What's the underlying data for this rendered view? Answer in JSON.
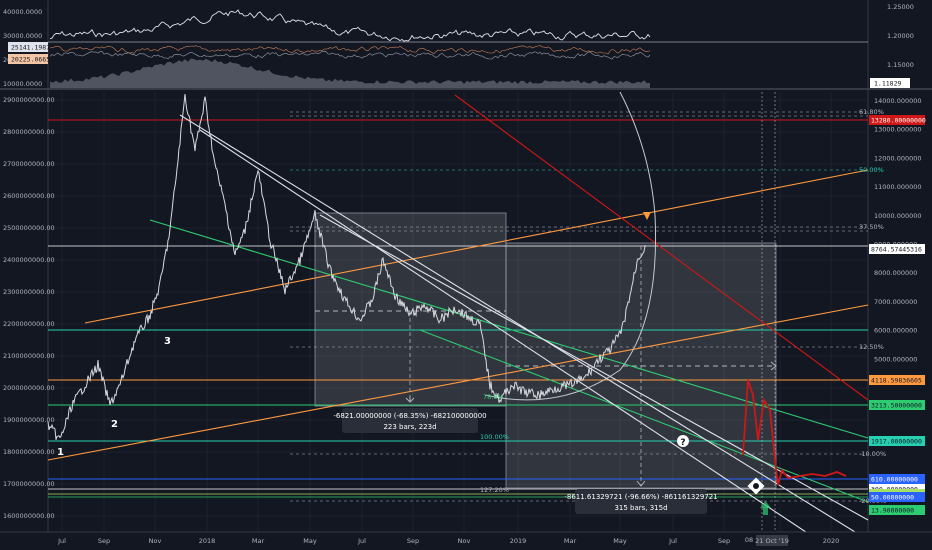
{
  "chart_data": [
    {
      "type": "line",
      "panel": "upper",
      "y_right_ticks": [
        "1.25000",
        "1.20000",
        "1.15000"
      ],
      "y_left_ticks": [
        "40000.0000",
        "30000.0000",
        "20000.0000",
        "10000.0000"
      ],
      "legend_labels": [
        {
          "text": "25141.1987",
          "color": "#e0e3eb",
          "text_color": "#131722"
        },
        {
          "text": "20225.0665",
          "color": "#f5c6a5",
          "text_color": "#131722"
        }
      ],
      "right_price_label": {
        "text": "1.11829",
        "color": "#ffffff",
        "text_color": "#131722"
      },
      "series": [
        {
          "color": "#e0e3eb"
        },
        {
          "color": "#c8805a"
        },
        {
          "color": "#9aa0ad"
        }
      ]
    },
    {
      "type": "line",
      "panel": "main",
      "y_left_ticks": [
        "2900000000.00",
        "2800000000.00",
        "2700000000.00",
        "2600000000.00",
        "2500000000.00",
        "2400000000.00",
        "2300000000.00",
        "2200000000.00",
        "2100000000.00",
        "2000000000.00",
        "1900000000.00",
        "1800000000.00",
        "1700000000.00",
        "1600000000.00"
      ],
      "y_right_ticks": [
        "14000.000000",
        "13000.000000",
        "12000.000000",
        "11000.000000",
        "10000.000000",
        "9000.000000",
        "8000.000000",
        "7000.000000",
        "6000.000000",
        "5000.000000"
      ],
      "x_ticks": [
        "Jul",
        "Sep",
        "Nov",
        "2018",
        "Mar",
        "May",
        "Jul",
        "Sep",
        "Nov",
        "2019",
        "Mar",
        "May",
        "Jul",
        "Sep",
        "Nov",
        "2020"
      ],
      "x_date_label": "08",
      "x_date_highlight": "21 Oct '19",
      "price_labels": [
        {
          "text": "13280.00000000",
          "bg": "#d01717",
          "color": "#ffffff"
        },
        {
          "text": "8764.57445316",
          "bg": "#ffffff",
          "color": "#131722"
        },
        {
          "text": "4118.59836605",
          "bg": "#ff9940",
          "color": "#131722"
        },
        {
          "text": "3213.50000000",
          "bg": "#2ecc71",
          "color": "#131722"
        },
        {
          "text": "1917.00000000",
          "bg": "#26d0b0",
          "color": "#131722"
        },
        {
          "text": "610.00000000",
          "bg": "#2962ff",
          "color": "#ffffff"
        },
        {
          "text": "300.00000000",
          "bg": "#ffffff",
          "color": "#131722"
        },
        {
          "text": "210.00000000",
          "bg": "#a8e063",
          "color": "#131722"
        },
        {
          "text": "50.00000000",
          "bg": "#2962ff",
          "color": "#ffffff"
        },
        {
          "text": "13.90000000",
          "bg": "#2ecc71",
          "color": "#131722"
        }
      ],
      "fib_labels_right": [
        {
          "text": "61.80%",
          "color": "#b2b5be"
        },
        {
          "text": "50.00%",
          "color": "#26d0b0"
        },
        {
          "text": "37.50%",
          "color": "#b2b5be"
        },
        {
          "text": "12.50%",
          "color": "#b2b5be"
        },
        {
          "text": "-10.00%",
          "color": "#b2b5be"
        },
        {
          "text": "-20.00%",
          "color": "#b2b5be"
        }
      ],
      "fib_labels_left": [
        {
          "text": "78.6%",
          "color": "#2ecc71"
        },
        {
          "text": "100.00%",
          "color": "#26d0b0"
        },
        {
          "text": "127.20%",
          "color": "#b2b5be"
        }
      ],
      "wave_labels": [
        "1",
        "2",
        "3"
      ],
      "question_mark": "?",
      "measure_1": {
        "line1": "-6821.00000000 (-68.35%) -682100000000",
        "line2": "223 bars, 223d"
      },
      "measure_2": {
        "line1": "-8611.61329721 (-96.66%) -861161329721",
        "line2": "315 bars, 315d"
      }
    }
  ]
}
